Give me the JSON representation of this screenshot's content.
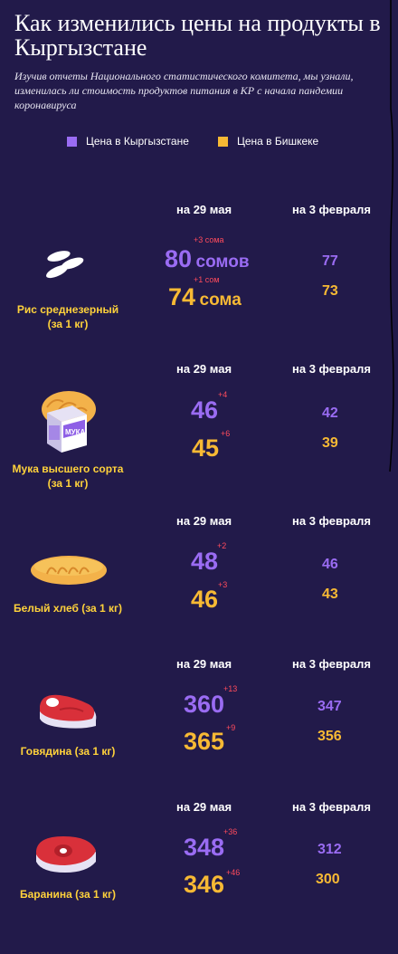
{
  "header": {
    "title": "Как изменились цены на продукты в Кыргызстане",
    "subtitle": "Изучив отчеты Национального статистического комитета, мы узнали, изменилась ли стоимость продуктов питания в КР с начала пандемии коронавируса"
  },
  "legend": [
    {
      "label": "Цена в Кыргызстане",
      "color": "#9a6cf3"
    },
    {
      "label": "Цена в Бишкеке",
      "color": "#f7b934"
    }
  ],
  "columns": {
    "current": "на 29 мая",
    "previous": "на 3 февраля"
  },
  "chart_data": {
    "type": "table",
    "series": [
      {
        "name": "Цена в Кыргызстане",
        "color": "#9a6cf3"
      },
      {
        "name": "Цена в Бишкеке",
        "color": "#f7b934"
      }
    ],
    "products": [
      {
        "name": "Рис среднезерный",
        "unit_label": "(за 1 кг)",
        "icon": "rice-icon",
        "kg": {
          "may": "80",
          "may_unit": "сомов",
          "delta": "+3 сома",
          "feb": "77"
        },
        "bk": {
          "may": "74",
          "may_unit": "сома",
          "delta": "+1 сом",
          "feb": "73"
        }
      },
      {
        "name": "Мука высшего сорта",
        "unit_label": "(за 1 кг)",
        "icon": "flour-icon",
        "package_text": "МУКА",
        "kg": {
          "may": "46",
          "delta": "+4",
          "feb": "42"
        },
        "bk": {
          "may": "45",
          "delta": "+6",
          "feb": "39"
        }
      },
      {
        "name": "Белый хлеб (за 1 кг)",
        "unit_label": "",
        "icon": "bread-icon",
        "kg": {
          "may": "48",
          "delta": "+2",
          "feb": "46"
        },
        "bk": {
          "may": "46",
          "delta": "+3",
          "feb": "43"
        }
      },
      {
        "name": "Говядина (за 1 кг)",
        "unit_label": "",
        "icon": "beef-icon",
        "kg": {
          "may": "360",
          "delta": "+13",
          "feb": "347"
        },
        "bk": {
          "may": "365",
          "delta": "+9",
          "feb": "356"
        }
      },
      {
        "name": "Баранина (за 1 кг)",
        "unit_label": "",
        "icon": "mutton-icon",
        "kg": {
          "may": "348",
          "delta": "+36",
          "feb": "312"
        },
        "bk": {
          "may": "346",
          "delta": "+46",
          "feb": "300"
        }
      }
    ]
  }
}
